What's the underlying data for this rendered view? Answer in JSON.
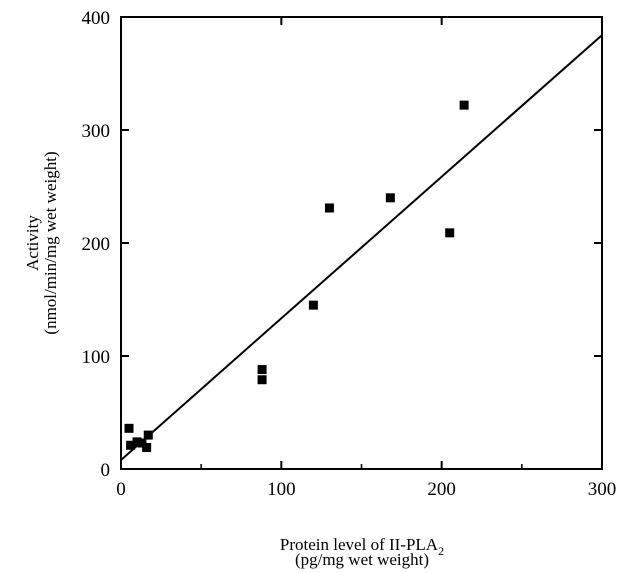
{
  "chart_data": {
    "type": "scatter",
    "title": "",
    "xlabel": "Protein level of II-PLA",
    "xlabel_subscript": "2",
    "xlabel_line2": "(pg/mg wet weight)",
    "ylabel": "Activity",
    "ylabel_line2": "(nmol/min/mg wet weight)",
    "xlim": [
      0,
      300
    ],
    "ylim": [
      0,
      400
    ],
    "xticks": [
      0,
      100,
      200,
      300
    ],
    "yticks": [
      0,
      100,
      200,
      300,
      400
    ],
    "xtick_labels": [
      "0",
      "100",
      "200",
      "300"
    ],
    "ytick_labels": [
      "0",
      "100",
      "200",
      "300",
      "400"
    ],
    "grid": false,
    "legend": "none",
    "points": [
      {
        "x": 5,
        "y": 36
      },
      {
        "x": 6,
        "y": 21
      },
      {
        "x": 10,
        "y": 24
      },
      {
        "x": 13,
        "y": 23
      },
      {
        "x": 16,
        "y": 19
      },
      {
        "x": 17,
        "y": 30
      },
      {
        "x": 88,
        "y": 88
      },
      {
        "x": 88,
        "y": 79
      },
      {
        "x": 120,
        "y": 145
      },
      {
        "x": 130,
        "y": 231
      },
      {
        "x": 168,
        "y": 240
      },
      {
        "x": 205,
        "y": 209
      },
      {
        "x": 214,
        "y": 322
      }
    ],
    "fit_line": {
      "x": [
        0,
        300
      ],
      "y": [
        8,
        384
      ]
    },
    "marker_color": "#000000",
    "line_color": "#000000"
  }
}
